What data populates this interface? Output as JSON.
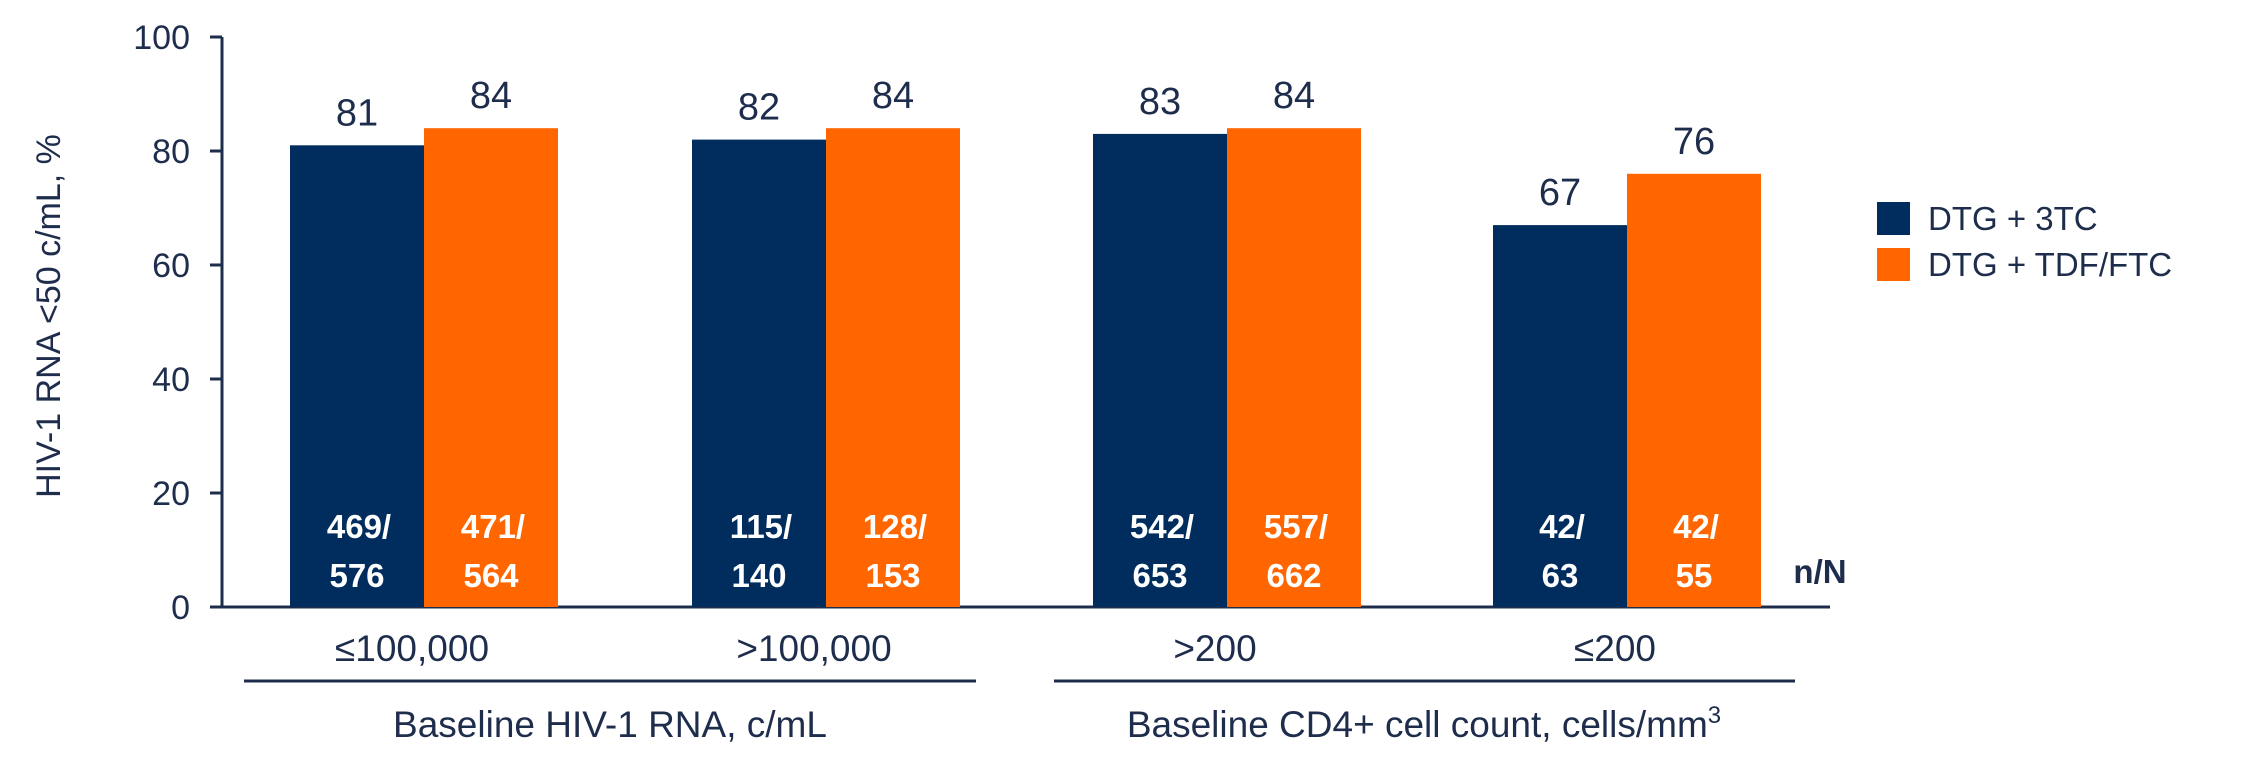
{
  "chart_data": {
    "type": "bar",
    "ylabel": "HIV-1 RNA <50 c/mL, %",
    "ylim": [
      0,
      100
    ],
    "yticks": [
      "0",
      "20",
      "40",
      "60",
      "80",
      "100"
    ],
    "categories": [
      "≤100,000",
      ">100,000",
      ">200",
      "≤200"
    ],
    "groups": [
      {
        "label": "Baseline HIV-1 RNA, c/mL",
        "label_sup": "",
        "categories": [
          "≤100,000",
          ">100,000"
        ]
      },
      {
        "label": "Baseline CD4+ cell count, cells/mm",
        "label_sup": "3",
        "categories": [
          ">200",
          "≤200"
        ]
      }
    ],
    "series": [
      {
        "name": "DTG + 3TC",
        "color": "#002d5e",
        "values": [
          81,
          82,
          83,
          67
        ],
        "n_over_N": [
          [
            "469/",
            "576"
          ],
          [
            "115/",
            "140"
          ],
          [
            "542/",
            "653"
          ],
          [
            "42/",
            "63"
          ]
        ]
      },
      {
        "name": "DTG + TDF/FTC",
        "color": "#ff6600",
        "values": [
          84,
          84,
          84,
          76
        ],
        "n_over_N": [
          [
            "471/",
            "564"
          ],
          [
            "128/",
            "153"
          ],
          [
            "557/",
            "662"
          ],
          [
            "42/",
            "55"
          ]
        ]
      }
    ],
    "nn_label": "n/N",
    "legend": "right",
    "grid": false
  }
}
